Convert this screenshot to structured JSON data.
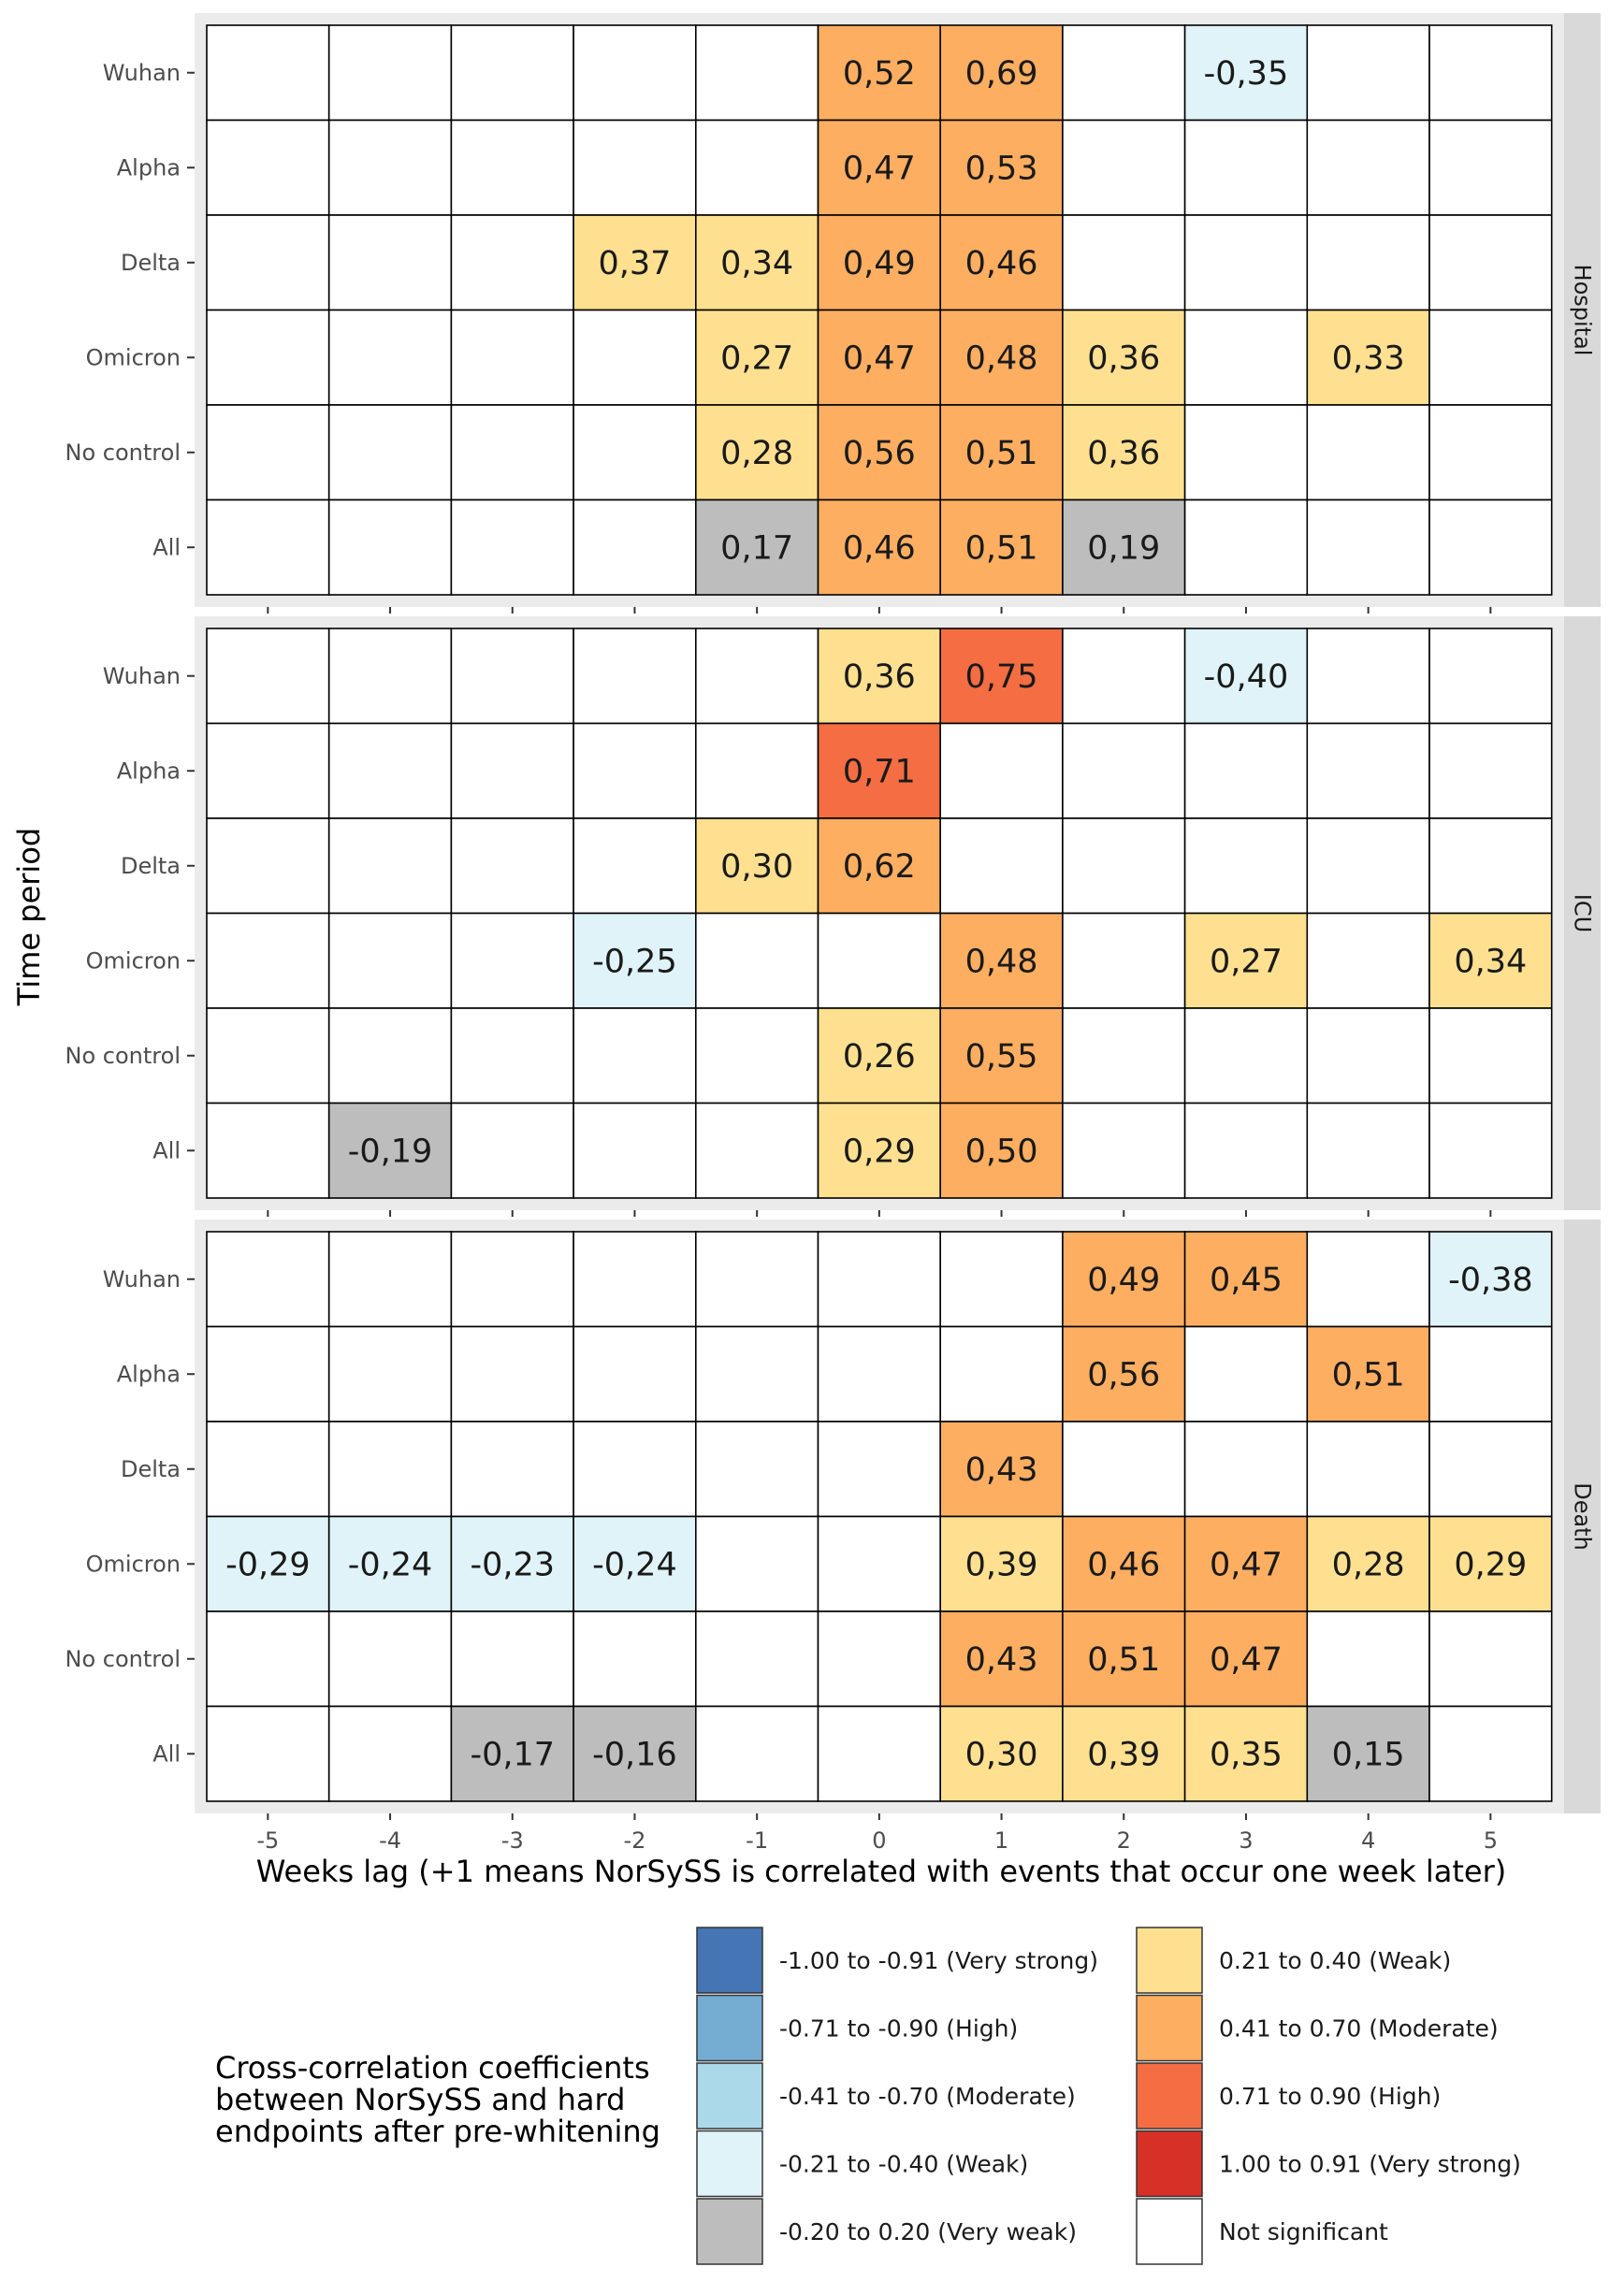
{
  "chart_data": {
    "type": "heatmap",
    "xlabel": "Weeks lag (+1 means NorSySS is correlated with events that occur one week later)",
    "ylabel": "Time period",
    "x": [
      -5,
      -4,
      -3,
      -2,
      -1,
      0,
      1,
      2,
      3,
      4,
      5
    ],
    "y": [
      "Wuhan",
      "Alpha",
      "Delta",
      "Omicron",
      "No control",
      "All"
    ],
    "decimal_separator": ",",
    "facets": [
      {
        "name": "Hospital",
        "cells": [
          {
            "period": "Wuhan",
            "lag": 0,
            "value": 0.52
          },
          {
            "period": "Wuhan",
            "lag": 1,
            "value": 0.69
          },
          {
            "period": "Wuhan",
            "lag": 3,
            "value": -0.35
          },
          {
            "period": "Alpha",
            "lag": 0,
            "value": 0.47
          },
          {
            "period": "Alpha",
            "lag": 1,
            "value": 0.53
          },
          {
            "period": "Delta",
            "lag": -2,
            "value": 0.37
          },
          {
            "period": "Delta",
            "lag": -1,
            "value": 0.34
          },
          {
            "period": "Delta",
            "lag": 0,
            "value": 0.49
          },
          {
            "period": "Delta",
            "lag": 1,
            "value": 0.46
          },
          {
            "period": "Omicron",
            "lag": -1,
            "value": 0.27
          },
          {
            "period": "Omicron",
            "lag": 0,
            "value": 0.47
          },
          {
            "period": "Omicron",
            "lag": 1,
            "value": 0.48
          },
          {
            "period": "Omicron",
            "lag": 2,
            "value": 0.36
          },
          {
            "period": "Omicron",
            "lag": 4,
            "value": 0.33
          },
          {
            "period": "No control",
            "lag": -1,
            "value": 0.28
          },
          {
            "period": "No control",
            "lag": 0,
            "value": 0.56
          },
          {
            "period": "No control",
            "lag": 1,
            "value": 0.51
          },
          {
            "period": "No control",
            "lag": 2,
            "value": 0.36
          },
          {
            "period": "All",
            "lag": -1,
            "value": 0.17
          },
          {
            "period": "All",
            "lag": 0,
            "value": 0.46
          },
          {
            "period": "All",
            "lag": 1,
            "value": 0.51
          },
          {
            "period": "All",
            "lag": 2,
            "value": 0.19
          }
        ]
      },
      {
        "name": "ICU",
        "cells": [
          {
            "period": "Wuhan",
            "lag": 0,
            "value": 0.36
          },
          {
            "period": "Wuhan",
            "lag": 1,
            "value": 0.75
          },
          {
            "period": "Wuhan",
            "lag": 3,
            "value": -0.4
          },
          {
            "period": "Alpha",
            "lag": 0,
            "value": 0.71
          },
          {
            "period": "Delta",
            "lag": -1,
            "value": 0.3
          },
          {
            "period": "Delta",
            "lag": 0,
            "value": 0.62
          },
          {
            "period": "Omicron",
            "lag": -2,
            "value": -0.25
          },
          {
            "period": "Omicron",
            "lag": 1,
            "value": 0.48
          },
          {
            "period": "Omicron",
            "lag": 3,
            "value": 0.27
          },
          {
            "period": "Omicron",
            "lag": 5,
            "value": 0.34
          },
          {
            "period": "No control",
            "lag": 0,
            "value": 0.26
          },
          {
            "period": "No control",
            "lag": 1,
            "value": 0.55
          },
          {
            "period": "All",
            "lag": -4,
            "value": -0.19
          },
          {
            "period": "All",
            "lag": 0,
            "value": 0.29
          },
          {
            "period": "All",
            "lag": 1,
            "value": 0.5
          }
        ]
      },
      {
        "name": "Death",
        "cells": [
          {
            "period": "Wuhan",
            "lag": 2,
            "value": 0.49
          },
          {
            "period": "Wuhan",
            "lag": 3,
            "value": 0.45
          },
          {
            "period": "Wuhan",
            "lag": 5,
            "value": -0.38
          },
          {
            "period": "Alpha",
            "lag": 2,
            "value": 0.56
          },
          {
            "period": "Alpha",
            "lag": 4,
            "value": 0.51
          },
          {
            "period": "Delta",
            "lag": 1,
            "value": 0.43
          },
          {
            "period": "Omicron",
            "lag": -5,
            "value": -0.29
          },
          {
            "period": "Omicron",
            "lag": -4,
            "value": -0.24
          },
          {
            "period": "Omicron",
            "lag": -3,
            "value": -0.23
          },
          {
            "period": "Omicron",
            "lag": -2,
            "value": -0.24
          },
          {
            "period": "Omicron",
            "lag": 1,
            "value": 0.39
          },
          {
            "period": "Omicron",
            "lag": 2,
            "value": 0.46
          },
          {
            "period": "Omicron",
            "lag": 3,
            "value": 0.47
          },
          {
            "period": "Omicron",
            "lag": 4,
            "value": 0.28
          },
          {
            "period": "Omicron",
            "lag": 5,
            "value": 0.29
          },
          {
            "period": "No control",
            "lag": 1,
            "value": 0.43
          },
          {
            "period": "No control",
            "lag": 2,
            "value": 0.51
          },
          {
            "period": "No control",
            "lag": 3,
            "value": 0.47
          },
          {
            "period": "All",
            "lag": -3,
            "value": -0.17
          },
          {
            "period": "All",
            "lag": -2,
            "value": -0.16
          },
          {
            "period": "All",
            "lag": 1,
            "value": 0.3
          },
          {
            "period": "All",
            "lag": 2,
            "value": 0.39
          },
          {
            "period": "All",
            "lag": 3,
            "value": 0.35
          },
          {
            "period": "All",
            "lag": 4,
            "value": 0.15
          }
        ]
      }
    ],
    "legend": {
      "title": "Cross-correlation coefficients between NorSySS and hard endpoints after pre-whitening",
      "position": "bottom",
      "items": [
        {
          "label": "-1.00 to -0.91 (Very strong)",
          "color": "#4575b4"
        },
        {
          "label": "-0.71 to -0.90 (High)",
          "color": "#74add1"
        },
        {
          "label": "-0.41 to -0.70 (Moderate)",
          "color": "#abd9e9"
        },
        {
          "label": "-0.21 to -0.40 (Weak)",
          "color": "#e0f3f8"
        },
        {
          "label": "-0.20 to 0.20 (Very weak)",
          "color": "#bdbdbd"
        },
        {
          "label": "0.21 to 0.40 (Weak)",
          "color": "#fee090"
        },
        {
          "label": "0.41 to 0.70 (Moderate)",
          "color": "#fdae61"
        },
        {
          "label": "0.71 to 0.90 (High)",
          "color": "#f46d43"
        },
        {
          "label": "1.00 to 0.91 (Very strong)",
          "color": "#d73027"
        },
        {
          "label": "Not significant",
          "color": "#ffffff"
        }
      ]
    },
    "grid": false,
    "panel_strip_color": "#d9d9d9"
  }
}
